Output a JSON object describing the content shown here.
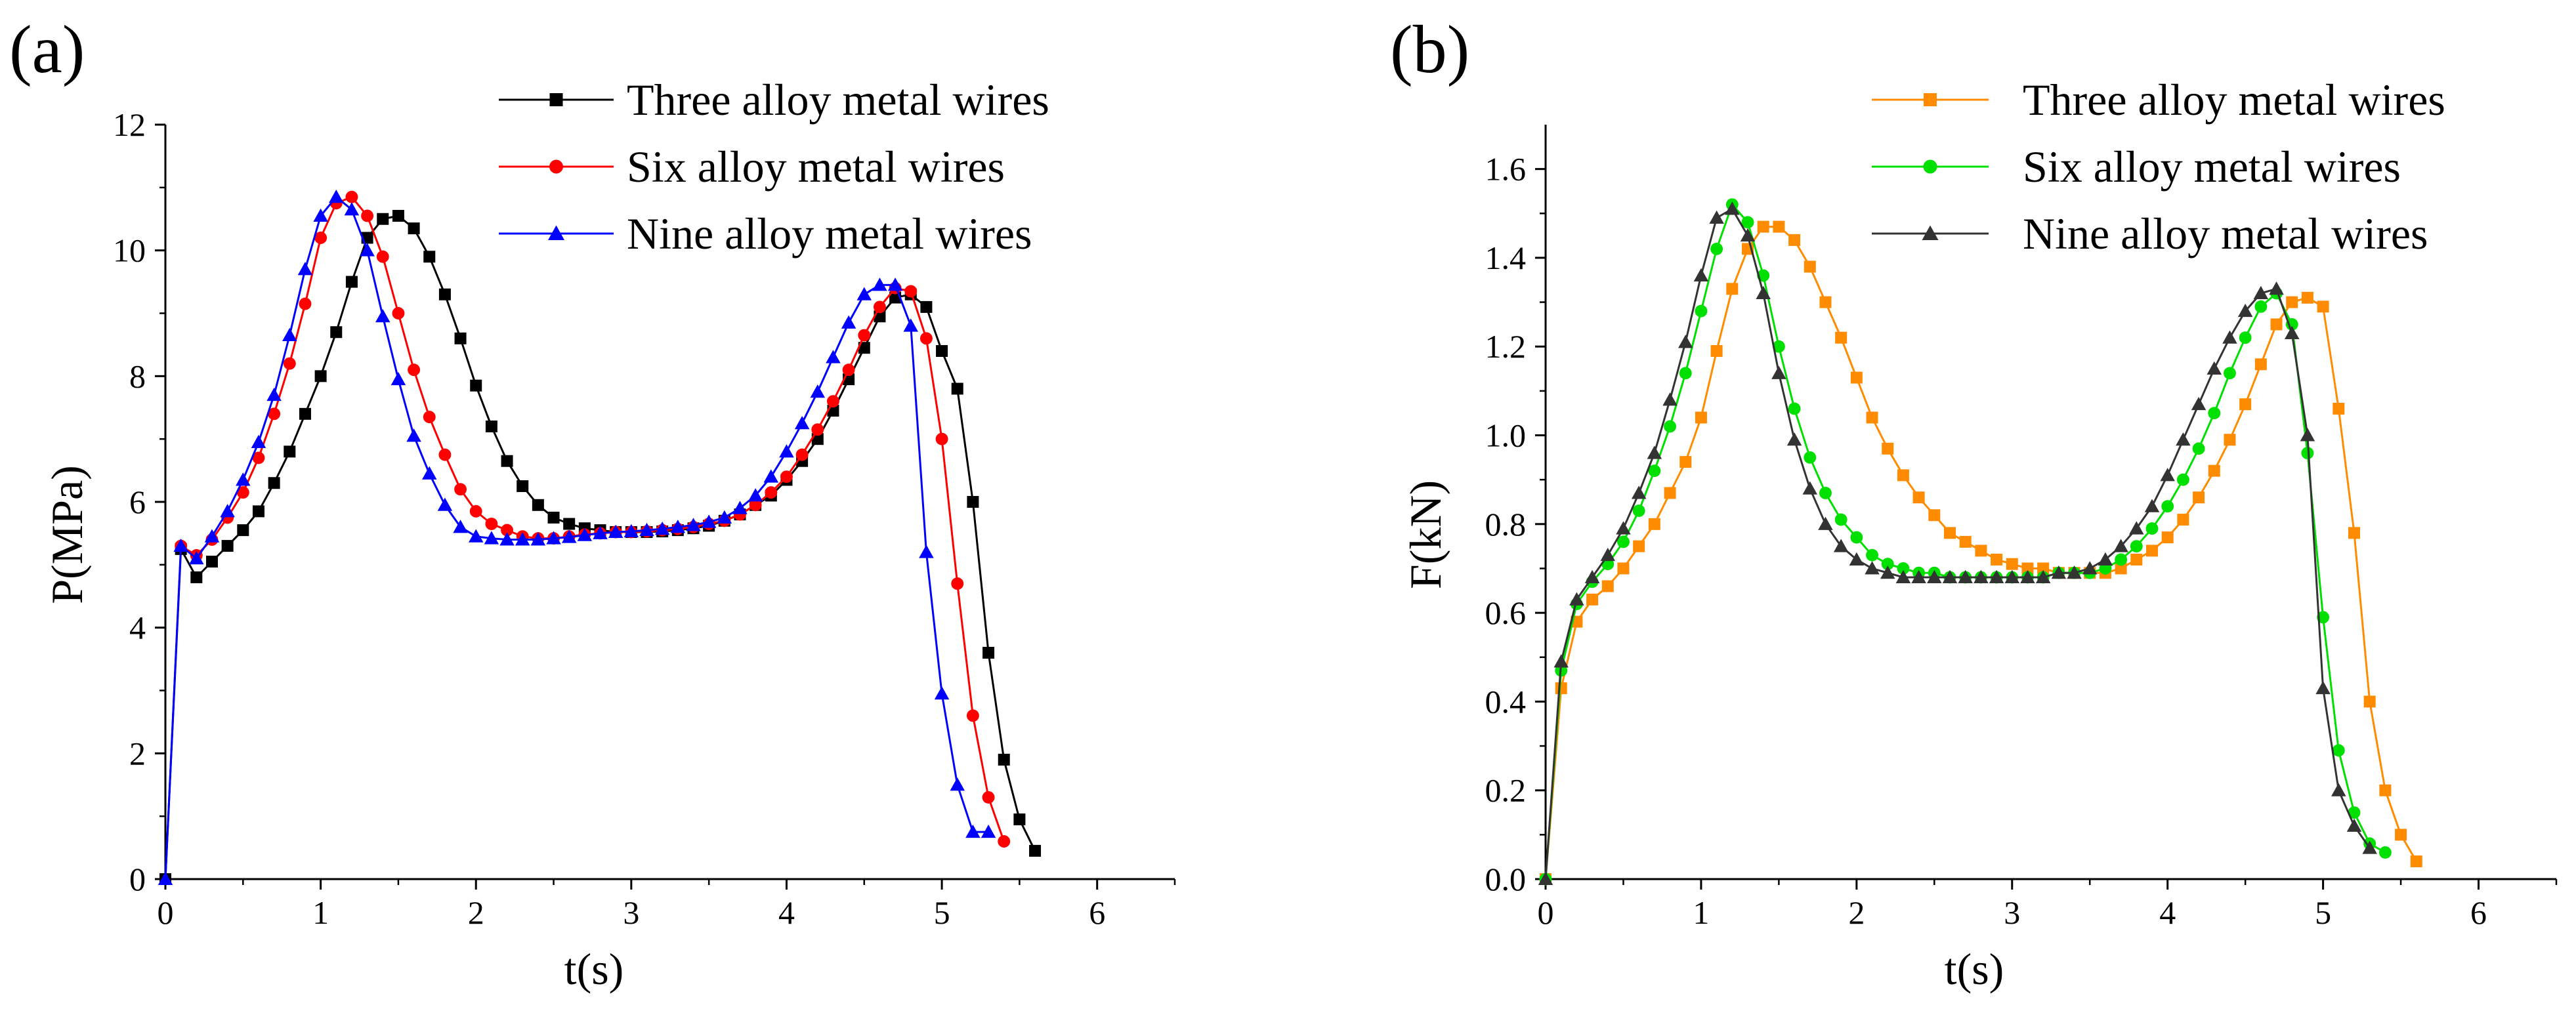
{
  "chart_data": [
    {
      "type": "line",
      "panel_label": "(a)",
      "title": "",
      "xlabel": "t(s)",
      "ylabel": "P(MPa)",
      "xlim": [
        0,
        6.5
      ],
      "ylim": [
        0,
        12
      ],
      "xticks": [
        0,
        1,
        2,
        3,
        4,
        5,
        6
      ],
      "yticks": [
        0,
        2,
        4,
        6,
        8,
        10,
        12
      ],
      "xtick_labels": [
        "0",
        "1",
        "2",
        "3",
        "4",
        "5",
        "6"
      ],
      "ytick_labels": [
        "0",
        "2",
        "4",
        "6",
        "8",
        "10",
        "12"
      ],
      "grid": false,
      "legend_position": "top-right",
      "series": [
        {
          "name": "Three alloy metal wires",
          "color": "#000000",
          "marker": "square",
          "x": [
            0,
            0.1,
            0.2,
            0.3,
            0.4,
            0.5,
            0.6,
            0.7,
            0.8,
            0.9,
            1.0,
            1.1,
            1.2,
            1.3,
            1.4,
            1.5,
            1.6,
            1.7,
            1.8,
            1.9,
            2.0,
            2.1,
            2.2,
            2.3,
            2.4,
            2.5,
            2.6,
            2.7,
            2.8,
            2.9,
            3.0,
            3.1,
            3.2,
            3.3,
            3.4,
            3.5,
            3.6,
            3.7,
            3.8,
            3.9,
            4.0,
            4.1,
            4.2,
            4.3,
            4.4,
            4.5,
            4.6,
            4.7,
            4.8,
            4.9,
            5.0,
            5.1,
            5.2,
            5.3,
            5.4,
            5.5,
            5.6
          ],
          "y": [
            0,
            5.25,
            4.8,
            5.05,
            5.3,
            5.55,
            5.85,
            6.3,
            6.8,
            7.4,
            8.0,
            8.7,
            9.5,
            10.2,
            10.5,
            10.55,
            10.35,
            9.9,
            9.3,
            8.6,
            7.85,
            7.2,
            6.65,
            6.25,
            5.95,
            5.75,
            5.65,
            5.58,
            5.55,
            5.52,
            5.52,
            5.52,
            5.53,
            5.55,
            5.58,
            5.62,
            5.7,
            5.8,
            5.95,
            6.1,
            6.35,
            6.65,
            7.0,
            7.45,
            7.95,
            8.45,
            8.95,
            9.25,
            9.3,
            9.1,
            8.4,
            7.8,
            6.0,
            3.6,
            1.9,
            0.95,
            0.45
          ]
        },
        {
          "name": "Six alloy metal wires",
          "color": "#ff0000",
          "marker": "circle",
          "x": [
            0.1,
            0.2,
            0.3,
            0.4,
            0.5,
            0.6,
            0.7,
            0.8,
            0.9,
            1.0,
            1.1,
            1.2,
            1.3,
            1.4,
            1.5,
            1.6,
            1.7,
            1.8,
            1.9,
            2.0,
            2.1,
            2.2,
            2.3,
            2.4,
            2.5,
            2.6,
            2.7,
            2.8,
            2.9,
            3.0,
            3.1,
            3.2,
            3.3,
            3.4,
            3.5,
            3.6,
            3.7,
            3.8,
            3.9,
            4.0,
            4.1,
            4.2,
            4.3,
            4.4,
            4.5,
            4.6,
            4.7,
            4.8,
            4.9,
            5.0,
            5.1,
            5.2,
            5.3,
            5.4
          ],
          "y": [
            5.3,
            5.15,
            5.4,
            5.75,
            6.15,
            6.7,
            7.4,
            8.2,
            9.15,
            10.2,
            10.75,
            10.85,
            10.55,
            9.9,
            9.0,
            8.1,
            7.35,
            6.75,
            6.2,
            5.85,
            5.65,
            5.55,
            5.45,
            5.42,
            5.42,
            5.45,
            5.48,
            5.5,
            5.52,
            5.52,
            5.53,
            5.55,
            5.57,
            5.6,
            5.65,
            5.7,
            5.8,
            5.95,
            6.15,
            6.4,
            6.75,
            7.15,
            7.6,
            8.1,
            8.65,
            9.1,
            9.4,
            9.35,
            8.6,
            7.0,
            4.7,
            2.6,
            1.3,
            0.6
          ]
        },
        {
          "name": "Nine alloy metal wires",
          "color": "#0000ff",
          "marker": "triangle",
          "x": [
            0,
            0.1,
            0.2,
            0.3,
            0.4,
            0.5,
            0.6,
            0.7,
            0.8,
            0.9,
            1.0,
            1.1,
            1.2,
            1.3,
            1.4,
            1.5,
            1.6,
            1.7,
            1.8,
            1.9,
            2.0,
            2.1,
            2.2,
            2.3,
            2.4,
            2.5,
            2.6,
            2.7,
            2.8,
            2.9,
            3.0,
            3.1,
            3.2,
            3.3,
            3.4,
            3.5,
            3.6,
            3.7,
            3.8,
            3.9,
            4.0,
            4.1,
            4.2,
            4.3,
            4.4,
            4.5,
            4.6,
            4.7,
            4.8,
            4.9,
            5.0,
            5.1,
            5.2,
            5.3
          ],
          "y": [
            0,
            5.3,
            5.1,
            5.45,
            5.85,
            6.35,
            6.95,
            7.7,
            8.65,
            9.7,
            10.55,
            10.85,
            10.65,
            10.0,
            8.95,
            7.95,
            7.05,
            6.45,
            5.95,
            5.6,
            5.45,
            5.42,
            5.4,
            5.4,
            5.4,
            5.42,
            5.44,
            5.47,
            5.5,
            5.52,
            5.53,
            5.55,
            5.57,
            5.6,
            5.63,
            5.68,
            5.75,
            5.9,
            6.1,
            6.4,
            6.8,
            7.25,
            7.75,
            8.3,
            8.85,
            9.3,
            9.45,
            9.45,
            8.8,
            5.2,
            2.95,
            1.5,
            0.75,
            0.75
          ]
        }
      ]
    },
    {
      "type": "line",
      "panel_label": "(b)",
      "title": "",
      "xlabel": "t(s)",
      "ylabel": "F(kN)",
      "xlim": [
        0,
        6.5
      ],
      "ylim": [
        0,
        1.7
      ],
      "xticks": [
        0,
        1,
        2,
        3,
        4,
        5,
        6
      ],
      "yticks": [
        0,
        0.2,
        0.4,
        0.6,
        0.8,
        1.0,
        1.2,
        1.4,
        1.6
      ],
      "xtick_labels": [
        "0",
        "1",
        "2",
        "3",
        "4",
        "5",
        "6"
      ],
      "ytick_labels": [
        "0.0",
        "0.2",
        "0.4",
        "0.6",
        "0.8",
        "1.0",
        "1.2",
        "1.4",
        "1.6"
      ],
      "grid": false,
      "legend_position": "top-right",
      "series": [
        {
          "name": "Three alloy metal wires",
          "color": "#ff8c00",
          "marker": "square",
          "x": [
            0,
            0.1,
            0.2,
            0.3,
            0.4,
            0.5,
            0.6,
            0.7,
            0.8,
            0.9,
            1.0,
            1.1,
            1.2,
            1.3,
            1.4,
            1.5,
            1.6,
            1.7,
            1.8,
            1.9,
            2.0,
            2.1,
            2.2,
            2.3,
            2.4,
            2.5,
            2.6,
            2.7,
            2.8,
            2.9,
            3.0,
            3.1,
            3.2,
            3.3,
            3.4,
            3.5,
            3.6,
            3.7,
            3.8,
            3.9,
            4.0,
            4.1,
            4.2,
            4.3,
            4.4,
            4.5,
            4.6,
            4.7,
            4.8,
            4.9,
            5.0,
            5.1,
            5.2,
            5.3,
            5.4,
            5.5,
            5.6
          ],
          "y": [
            0,
            0.43,
            0.58,
            0.63,
            0.66,
            0.7,
            0.75,
            0.8,
            0.87,
            0.94,
            1.04,
            1.19,
            1.33,
            1.42,
            1.47,
            1.47,
            1.44,
            1.38,
            1.3,
            1.22,
            1.13,
            1.04,
            0.97,
            0.91,
            0.86,
            0.82,
            0.78,
            0.76,
            0.74,
            0.72,
            0.71,
            0.7,
            0.7,
            0.69,
            0.69,
            0.69,
            0.69,
            0.7,
            0.72,
            0.74,
            0.77,
            0.81,
            0.86,
            0.92,
            0.99,
            1.07,
            1.16,
            1.25,
            1.3,
            1.31,
            1.29,
            1.06,
            0.78,
            0.4,
            0.2,
            0.1,
            0.04
          ]
        },
        {
          "name": "Six alloy metal wires",
          "color": "#00e000",
          "marker": "circle",
          "x": [
            0,
            0.1,
            0.2,
            0.3,
            0.4,
            0.5,
            0.6,
            0.7,
            0.8,
            0.9,
            1.0,
            1.1,
            1.2,
            1.3,
            1.4,
            1.5,
            1.6,
            1.7,
            1.8,
            1.9,
            2.0,
            2.1,
            2.2,
            2.3,
            2.4,
            2.5,
            2.6,
            2.7,
            2.8,
            2.9,
            3.0,
            3.1,
            3.2,
            3.3,
            3.4,
            3.5,
            3.6,
            3.7,
            3.8,
            3.9,
            4.0,
            4.1,
            4.2,
            4.3,
            4.4,
            4.5,
            4.6,
            4.7,
            4.8,
            4.9,
            5.0,
            5.1,
            5.2,
            5.3,
            5.4
          ],
          "y": [
            0,
            0.47,
            0.62,
            0.67,
            0.71,
            0.76,
            0.83,
            0.92,
            1.02,
            1.14,
            1.28,
            1.42,
            1.52,
            1.48,
            1.36,
            1.2,
            1.06,
            0.95,
            0.87,
            0.81,
            0.77,
            0.73,
            0.71,
            0.7,
            0.69,
            0.69,
            0.68,
            0.68,
            0.68,
            0.68,
            0.68,
            0.68,
            0.68,
            0.69,
            0.69,
            0.69,
            0.7,
            0.72,
            0.75,
            0.79,
            0.84,
            0.9,
            0.97,
            1.05,
            1.14,
            1.22,
            1.29,
            1.32,
            1.25,
            0.96,
            0.59,
            0.29,
            0.15,
            0.08,
            0.06
          ]
        },
        {
          "name": "Nine alloy metal wires",
          "color": "#333333",
          "marker": "triangle",
          "x": [
            0,
            0.1,
            0.2,
            0.3,
            0.4,
            0.5,
            0.6,
            0.7,
            0.8,
            0.9,
            1.0,
            1.1,
            1.2,
            1.3,
            1.4,
            1.5,
            1.6,
            1.7,
            1.8,
            1.9,
            2.0,
            2.1,
            2.2,
            2.3,
            2.4,
            2.5,
            2.6,
            2.7,
            2.8,
            2.9,
            3.0,
            3.1,
            3.2,
            3.3,
            3.4,
            3.5,
            3.6,
            3.7,
            3.8,
            3.9,
            4.0,
            4.1,
            4.2,
            4.3,
            4.4,
            4.5,
            4.6,
            4.7,
            4.8,
            4.9,
            5.0,
            5.1,
            5.2,
            5.3
          ],
          "y": [
            0,
            0.49,
            0.63,
            0.68,
            0.73,
            0.79,
            0.87,
            0.96,
            1.08,
            1.21,
            1.36,
            1.49,
            1.51,
            1.45,
            1.32,
            1.14,
            0.99,
            0.88,
            0.8,
            0.75,
            0.72,
            0.7,
            0.69,
            0.68,
            0.68,
            0.68,
            0.68,
            0.68,
            0.68,
            0.68,
            0.68,
            0.68,
            0.68,
            0.69,
            0.69,
            0.7,
            0.72,
            0.75,
            0.79,
            0.84,
            0.91,
            0.99,
            1.07,
            1.15,
            1.22,
            1.28,
            1.32,
            1.33,
            1.23,
            1.0,
            0.43,
            0.2,
            0.12,
            0.07
          ]
        }
      ]
    }
  ]
}
